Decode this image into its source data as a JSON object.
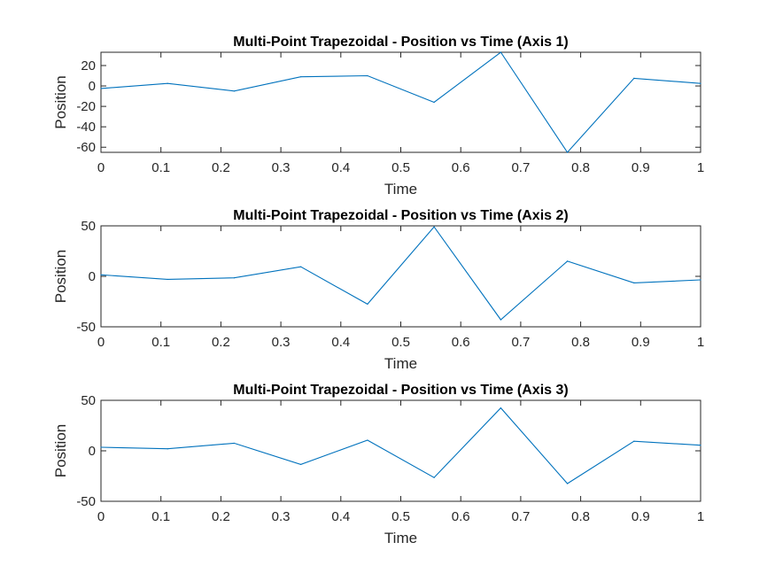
{
  "chart_data": [
    {
      "type": "line",
      "title": "Multi-Point Trapezoidal - Position vs Time (Axis 1)",
      "xlabel": "Time",
      "ylabel": "Position",
      "xlim": [
        0,
        1
      ],
      "ylim": [
        -65,
        33
      ],
      "xticks": [
        0,
        0.1,
        0.2,
        0.3,
        0.4,
        0.5,
        0.6,
        0.7,
        0.8,
        0.9,
        1
      ],
      "xtick_labels": [
        "0",
        "0.1",
        "0.2",
        "0.3",
        "0.4",
        "0.5",
        "0.6",
        "0.7",
        "0.8",
        "0.9",
        "1"
      ],
      "yticks": [
        20,
        0,
        -20,
        -40,
        -60
      ],
      "ytick_labels": [
        "20",
        "0",
        "-20",
        "-40",
        "-60"
      ],
      "grid": false,
      "line_color": "#0072BD",
      "x": [
        0,
        0.1111,
        0.2222,
        0.3333,
        0.4444,
        0.5556,
        0.6667,
        0.7778,
        0.8889,
        1.0
      ],
      "y": [
        -2.5,
        2.5,
        -5,
        9,
        10,
        -16,
        33,
        -65,
        7.5,
        2.5
      ]
    },
    {
      "type": "line",
      "title": "Multi-Point Trapezoidal - Position vs Time (Axis 2)",
      "xlabel": "Time",
      "ylabel": "Position",
      "xlim": [
        0,
        1
      ],
      "ylim": [
        -50,
        50
      ],
      "xticks": [
        0,
        0.1,
        0.2,
        0.3,
        0.4,
        0.5,
        0.6,
        0.7,
        0.8,
        0.9,
        1
      ],
      "xtick_labels": [
        "0",
        "0.1",
        "0.2",
        "0.3",
        "0.4",
        "0.5",
        "0.6",
        "0.7",
        "0.8",
        "0.9",
        "1"
      ],
      "yticks": [
        50,
        0,
        -50
      ],
      "ytick_labels": [
        "50",
        "0",
        "-50"
      ],
      "grid": false,
      "line_color": "#0072BD",
      "x": [
        0,
        0.1111,
        0.2222,
        0.3333,
        0.4444,
        0.5556,
        0.6667,
        0.7778,
        0.8889,
        1.0
      ],
      "y": [
        1.5,
        -3,
        -1.5,
        9.5,
        -27.5,
        49,
        -43,
        15,
        -6.5,
        -3.5
      ]
    },
    {
      "type": "line",
      "title": "Multi-Point Trapezoidal - Position vs Time (Axis 3)",
      "xlabel": "Time",
      "ylabel": "Position",
      "xlim": [
        0,
        1
      ],
      "ylim": [
        -50,
        50
      ],
      "xticks": [
        0,
        0.1,
        0.2,
        0.3,
        0.4,
        0.5,
        0.6,
        0.7,
        0.8,
        0.9,
        1
      ],
      "xtick_labels": [
        "0",
        "0.1",
        "0.2",
        "0.3",
        "0.4",
        "0.5",
        "0.6",
        "0.7",
        "0.8",
        "0.9",
        "1"
      ],
      "yticks": [
        50,
        0,
        -50
      ],
      "ytick_labels": [
        "50",
        "0",
        "-50"
      ],
      "grid": false,
      "line_color": "#0072BD",
      "x": [
        0,
        0.1111,
        0.2222,
        0.3333,
        0.4444,
        0.5556,
        0.6667,
        0.7778,
        0.8889,
        1.0
      ],
      "y": [
        3.5,
        2,
        7.5,
        -13.5,
        10.5,
        -26.5,
        42.5,
        -32.5,
        9.5,
        5.5
      ]
    }
  ]
}
